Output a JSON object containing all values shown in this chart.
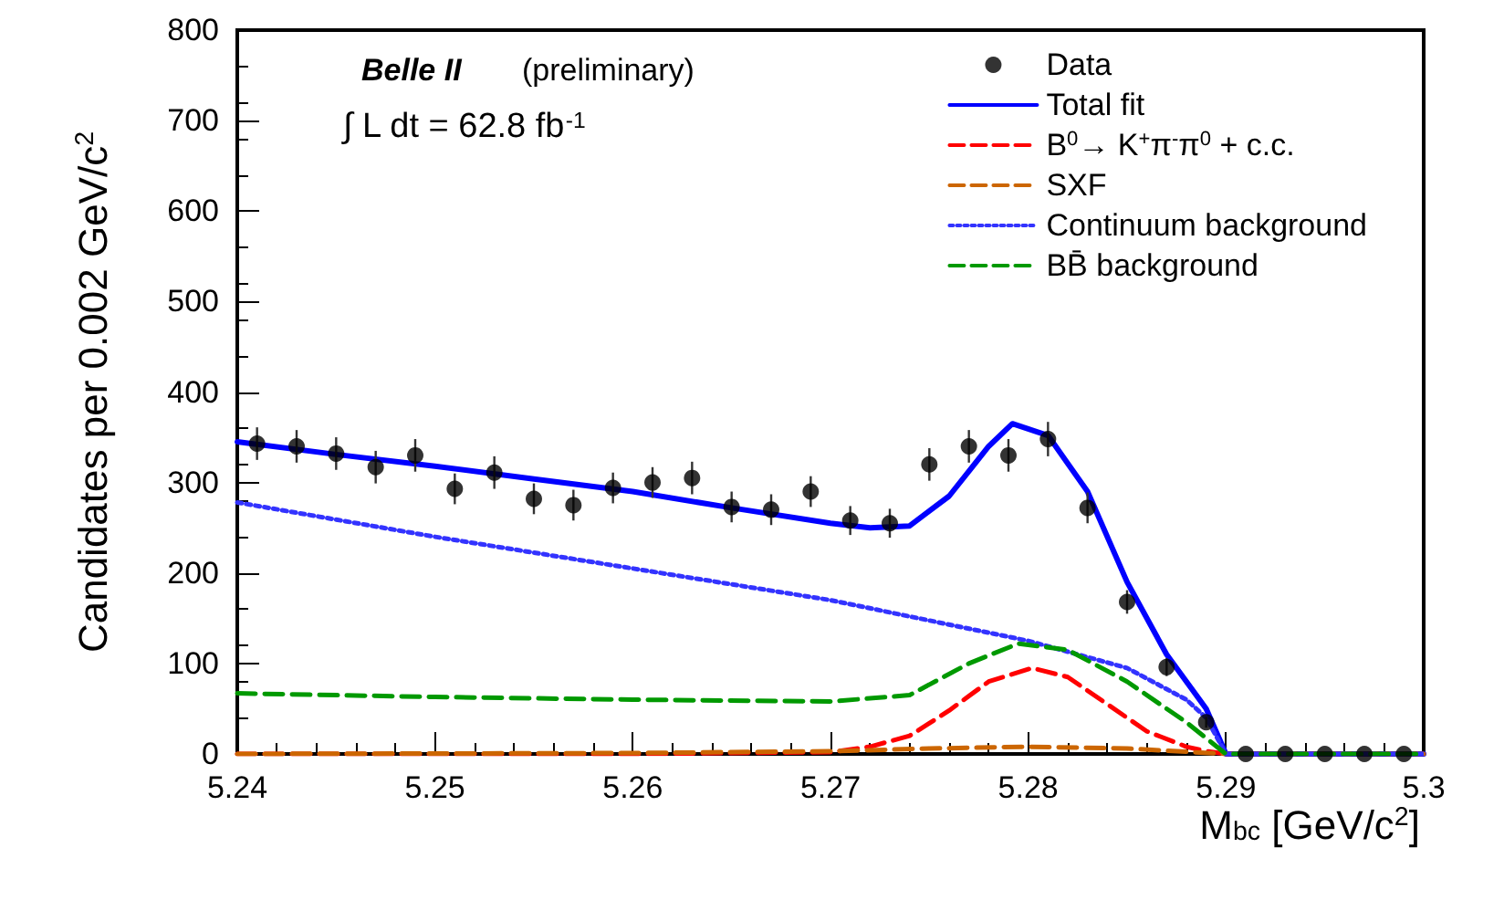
{
  "chart_data": {
    "type": "scatter",
    "xlabel": "M$_{bc}$ [GeV/c$^{2}$]",
    "ylabel": "Candidates per 0.002 GeV/c$^{2}$",
    "annotations": [
      "Belle II",
      "(preliminary)",
      "∫ L dt = 62.8 fb$^{-1}$"
    ],
    "xlim": [
      5.24,
      5.3
    ],
    "xticks": [
      5.24,
      5.25,
      5.26,
      5.27,
      5.28,
      5.29,
      5.3
    ],
    "ylim": [
      0,
      800
    ],
    "yticks": [
      0,
      100,
      200,
      300,
      400,
      500,
      600,
      700,
      800
    ],
    "grid": false,
    "legend": "top right",
    "series": [
      {
        "name": "Data",
        "color": "#000000",
        "marker": "circle",
        "x": [
          5.241,
          5.243,
          5.245,
          5.247,
          5.249,
          5.251,
          5.253,
          5.255,
          5.257,
          5.259,
          5.261,
          5.263,
          5.265,
          5.267,
          5.269,
          5.271,
          5.273,
          5.275,
          5.277,
          5.279,
          5.281,
          5.283,
          5.285,
          5.287,
          5.289,
          5.291,
          5.293,
          5.295,
          5.297,
          5.299
        ],
        "values": [
          343,
          340,
          332,
          317,
          330,
          293,
          311,
          282,
          275,
          294,
          300,
          305,
          273,
          270,
          290,
          258,
          255,
          320,
          340,
          330,
          348,
          272,
          168,
          96,
          35,
          0,
          0,
          0,
          0,
          0
        ],
        "errors": [
          18,
          18,
          18,
          18,
          18,
          17,
          18,
          17,
          17,
          17,
          17,
          18,
          17,
          17,
          17,
          16,
          16,
          18,
          18,
          18,
          19,
          17,
          13,
          10,
          6,
          null,
          null,
          null,
          null,
          null
        ]
      },
      {
        "name": "Total fit",
        "type": "line",
        "color": "#0000ff",
        "line_style": "solid",
        "marker": "none",
        "x": [
          5.24,
          5.245,
          5.25,
          5.255,
          5.26,
          5.265,
          5.27,
          5.272,
          5.274,
          5.276,
          5.278,
          5.2792,
          5.281,
          5.283,
          5.285,
          5.287,
          5.289,
          5.2895,
          5.29,
          5.295,
          5.3
        ],
        "values": [
          345,
          331,
          318,
          304,
          290,
          272,
          255,
          250,
          252,
          285,
          340,
          365,
          352,
          290,
          190,
          110,
          50,
          25,
          0,
          0,
          0
        ]
      },
      {
        "name": "B$^{0}$→ K$^{+}$π$^{-}$π$^{0}$ + c.c.",
        "type": "line",
        "color": "#ff0000",
        "line_style": "dashed",
        "marker": "none",
        "x": [
          5.24,
          5.26,
          5.27,
          5.272,
          5.274,
          5.276,
          5.278,
          5.2802,
          5.282,
          5.284,
          5.286,
          5.288,
          5.289,
          5.29,
          5.3
        ],
        "values": [
          0,
          0,
          2,
          8,
          20,
          48,
          80,
          95,
          85,
          55,
          25,
          8,
          3,
          0,
          0
        ]
      },
      {
        "name": "SXF",
        "type": "line",
        "color": "#cc6600",
        "line_style": "dashed",
        "marker": "none",
        "x": [
          5.24,
          5.26,
          5.27,
          5.275,
          5.28,
          5.285,
          5.29,
          5.3
        ],
        "values": [
          0,
          1,
          3,
          6,
          8,
          6,
          0,
          0
        ]
      },
      {
        "name": "Continuum background",
        "type": "line",
        "color": "#3333ff",
        "line_style": "dotted",
        "marker": "none",
        "x": [
          5.24,
          5.25,
          5.26,
          5.27,
          5.28,
          5.285,
          5.288,
          5.289,
          5.29,
          5.3
        ],
        "values": [
          278,
          240,
          205,
          170,
          125,
          95,
          60,
          40,
          0,
          0
        ]
      },
      {
        "name": "BB̄ background",
        "type": "line",
        "color": "#009900",
        "line_style": "dashed",
        "marker": "none",
        "x": [
          5.24,
          5.25,
          5.26,
          5.27,
          5.274,
          5.277,
          5.2795,
          5.282,
          5.285,
          5.288,
          5.29,
          5.3
        ],
        "values": [
          67,
          63,
          60,
          58,
          65,
          100,
          122,
          115,
          80,
          35,
          0,
          0
        ]
      }
    ]
  }
}
